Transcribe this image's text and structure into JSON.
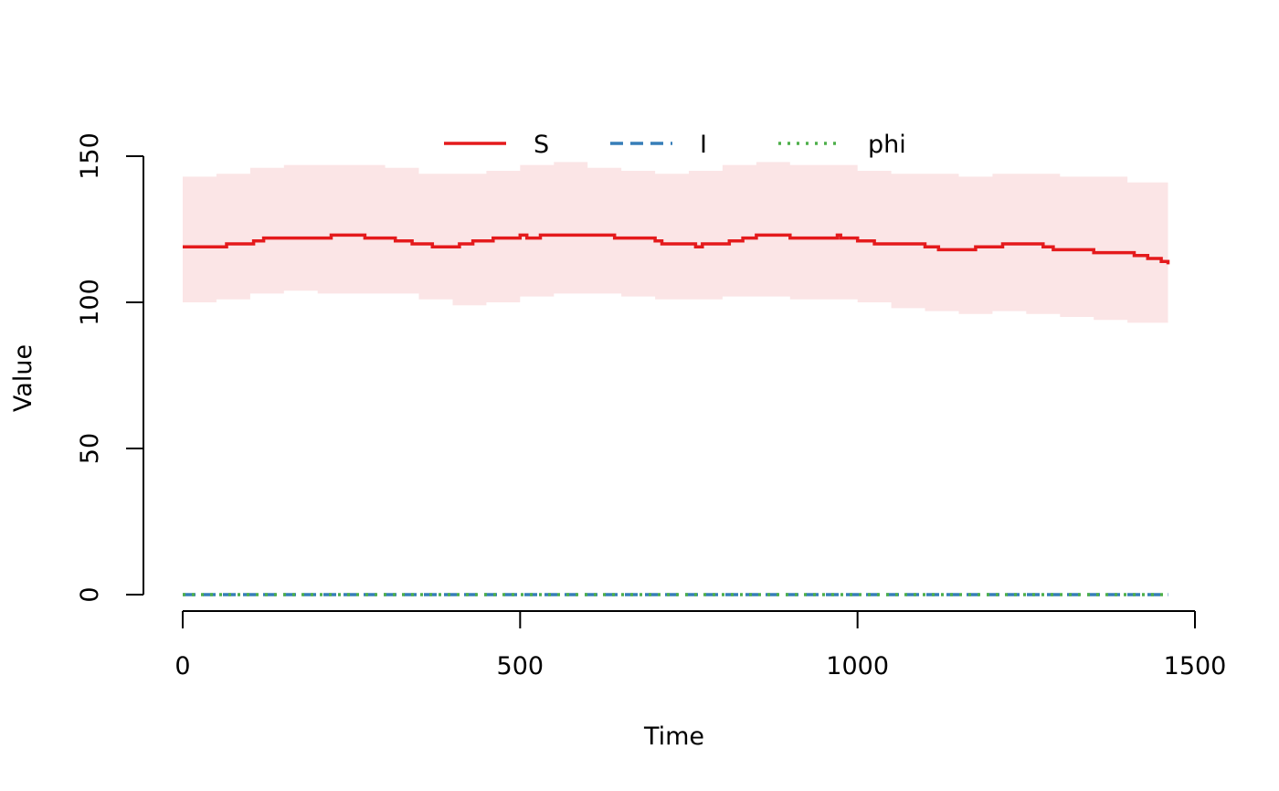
{
  "chart_data": {
    "type": "line",
    "title": "",
    "xlabel": "Time",
    "ylabel": "Value",
    "xlim": [
      0,
      1500
    ],
    "ylim": [
      0,
      150
    ],
    "x_ticks": [
      0,
      500,
      1000,
      1500
    ],
    "x_tick_labels": [
      "0",
      "500",
      "1000",
      "1500"
    ],
    "y_ticks": [
      0,
      50,
      100,
      150
    ],
    "y_tick_labels": [
      "0",
      "50",
      "100",
      "150"
    ],
    "grid": false,
    "legend": {
      "placement": "top",
      "entries": [
        "S",
        "I",
        "phi"
      ]
    },
    "series": [
      {
        "name": "S",
        "color": "#e41a1c",
        "line_style": "solid",
        "step": true,
        "x": [
          0,
          65,
          105,
          120,
          200,
          220,
          235,
          270,
          315,
          340,
          355,
          370,
          410,
          430,
          460,
          480,
          500,
          510,
          520,
          530,
          550,
          560,
          600,
          640,
          700,
          710,
          760,
          770,
          780,
          810,
          830,
          850,
          870,
          900,
          950,
          970,
          975,
          980,
          1000,
          1025,
          1100,
          1120,
          1175,
          1215,
          1255,
          1275,
          1290,
          1320,
          1350,
          1410,
          1430,
          1450,
          1460
        ],
        "y": [
          119,
          120,
          121,
          122,
          122,
          123,
          123,
          122,
          121,
          120,
          120,
          119,
          120,
          121,
          122,
          122,
          123,
          122,
          122,
          123,
          123,
          123,
          123,
          122,
          121,
          120,
          119,
          120,
          120,
          121,
          122,
          123,
          123,
          122,
          122,
          123,
          122,
          122,
          121,
          120,
          119,
          118,
          119,
          120,
          120,
          119,
          118,
          118,
          117,
          116,
          115,
          114,
          113
        ],
        "band": {
          "color": "#fbe5e6",
          "x": [
            0,
            50,
            100,
            150,
            200,
            250,
            300,
            350,
            400,
            450,
            500,
            550,
            600,
            650,
            700,
            750,
            800,
            850,
            900,
            950,
            1000,
            1050,
            1100,
            1150,
            1200,
            1250,
            1300,
            1350,
            1400,
            1460
          ],
          "lower": [
            100,
            101,
            103,
            104,
            103,
            103,
            103,
            101,
            99,
            100,
            102,
            103,
            103,
            102,
            101,
            101,
            102,
            102,
            101,
            101,
            100,
            98,
            97,
            96,
            97,
            96,
            95,
            94,
            93,
            91
          ],
          "upper": [
            143,
            144,
            146,
            147,
            147,
            147,
            146,
            144,
            144,
            145,
            147,
            148,
            146,
            145,
            144,
            145,
            147,
            148,
            147,
            147,
            145,
            144,
            144,
            143,
            144,
            144,
            143,
            143,
            141,
            138
          ]
        }
      },
      {
        "name": "I",
        "color": "#377eb8",
        "line_style": "dashed",
        "x": [
          0,
          1460
        ],
        "y": [
          0,
          0
        ]
      },
      {
        "name": "phi",
        "color": "#4daf4a",
        "line_style": "dotted",
        "x": [
          0,
          1460
        ],
        "y": [
          0,
          0
        ]
      }
    ]
  }
}
